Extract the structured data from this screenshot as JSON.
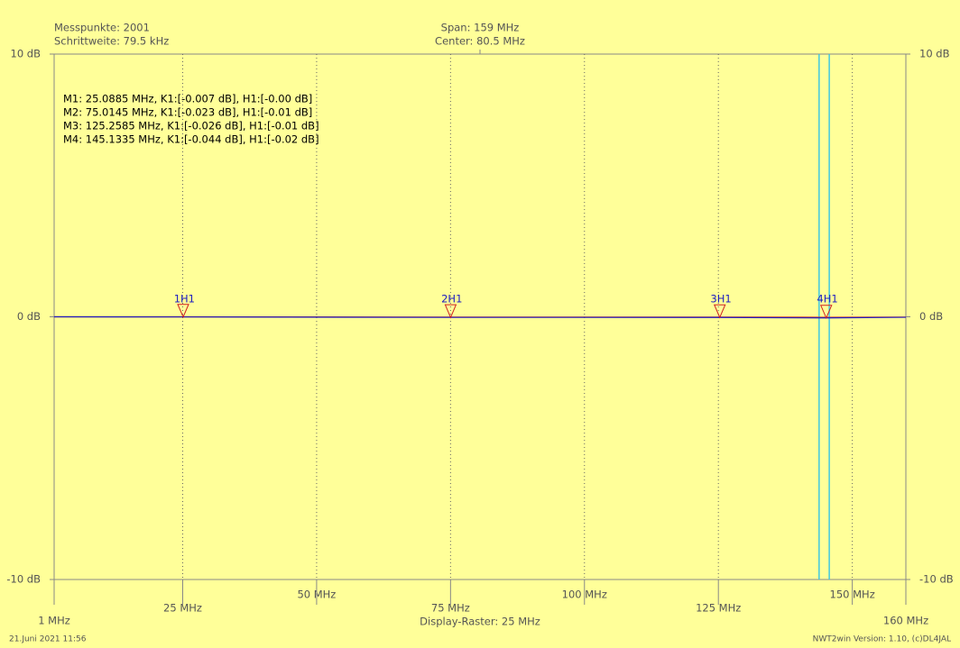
{
  "chart_data": {
    "type": "line",
    "info": {
      "points": "Messpunkte: 2001",
      "step": "Schrittweite: 79.5 kHz",
      "span": "Span: 159 MHz",
      "center": "Center: 80.5 MHz",
      "raster": "Display-Raster: 25 MHz",
      "date": "21.Juni 2021 11:56",
      "version": "NWT2win Version: 1.10, (c)DL4JAL"
    },
    "marker_lines": [
      "M1: 25.0885 MHz, K1:[-0.007 dB], H1:[-0.00 dB]",
      "M2: 75.0145 MHz, K1:[-0.023 dB], H1:[-0.01 dB]",
      "M3: 125.2585 MHz, K1:[-0.026 dB], H1:[-0.01 dB]",
      "M4: 145.1335 MHz, K1:[-0.044 dB], H1:[-0.02 dB]"
    ],
    "marker_trace": "H1",
    "markers": [
      {
        "id": "1",
        "x": 25.0885,
        "value": -0.007
      },
      {
        "id": "2",
        "x": 75.0145,
        "value": -0.023
      },
      {
        "id": "3",
        "x": 125.2585,
        "value": -0.026
      },
      {
        "id": "4",
        "x": 145.1335,
        "value": -0.044
      }
    ],
    "x": [
      1,
      25.0885,
      75.0145,
      125.2585,
      145.1335,
      160
    ],
    "series": [
      {
        "color": "#2020c0",
        "values": [
          0,
          -0.007,
          -0.023,
          -0.026,
          -0.044,
          -0.02
        ]
      },
      {
        "color": "#c02020",
        "values": [
          0,
          -0.0,
          -0.01,
          -0.01,
          -0.02,
          -0.01
        ]
      }
    ],
    "cursor_lines": [
      143.8,
      145.7
    ],
    "cursor_color": "#40c8e0",
    "xlim": [
      1,
      160
    ],
    "xticks": [
      {
        "value": 1,
        "label": "1 MHz"
      },
      {
        "value": 25,
        "label": "25 MHz"
      },
      {
        "value": 50,
        "label": "50 MHz"
      },
      {
        "value": 75,
        "label": "75 MHz"
      },
      {
        "value": 100,
        "label": "100 MHz"
      },
      {
        "value": 125,
        "label": "125 MHz"
      },
      {
        "value": 150,
        "label": "150 MHz"
      },
      {
        "value": 160,
        "label": "160 MHz"
      }
    ],
    "ylim": [
      -10,
      10
    ],
    "yticks": [
      {
        "value": -10,
        "label": "-10 dB"
      },
      {
        "value": 0,
        "label": "0 dB"
      },
      {
        "value": 10,
        "label": "10 dB"
      }
    ],
    "grid": true
  }
}
